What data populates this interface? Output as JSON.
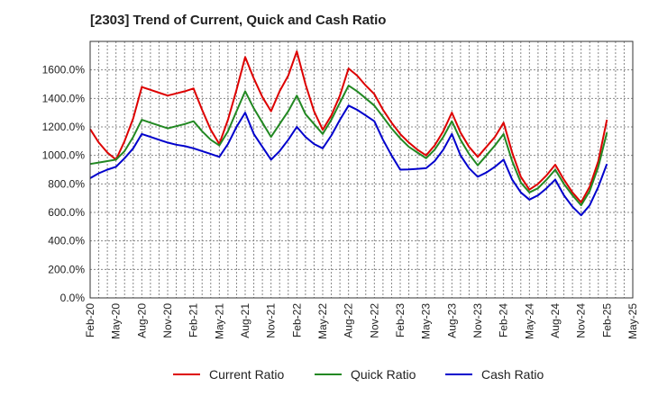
{
  "chart_data": {
    "type": "line",
    "title": "[2303]  Trend of Current, Quick and Cash Ratio",
    "xlabel": "",
    "ylabel": "",
    "ylim": [
      0,
      1800
    ],
    "yticks": [
      0,
      200,
      400,
      600,
      800,
      1000,
      1200,
      1400,
      1600
    ],
    "ytick_labels": [
      "0.0%",
      "200.0%",
      "400.0%",
      "600.0%",
      "800.0%",
      "1000.0%",
      "1200.0%",
      "1400.0%",
      "1600.0%"
    ],
    "x_tick_labels": [
      "Feb-20",
      "May-20",
      "Aug-20",
      "Nov-20",
      "Feb-21",
      "May-21",
      "Aug-21",
      "Nov-21",
      "Feb-22",
      "May-22",
      "Aug-22",
      "Nov-22",
      "Feb-23",
      "May-23",
      "Aug-23",
      "Nov-23",
      "Feb-24",
      "May-24",
      "Aug-24",
      "Nov-24",
      "Feb-25",
      "May-25"
    ],
    "grid": true,
    "legend_position": "bottom",
    "series": [
      {
        "name": "Current Ratio",
        "color": "#dd0000",
        "values": [
          1185,
          1090,
          1020,
          970,
          1100,
          1260,
          1480,
          1460,
          1440,
          1420,
          1435,
          1450,
          1470,
          1320,
          1180,
          1080,
          1250,
          1460,
          1690,
          1540,
          1410,
          1310,
          1450,
          1560,
          1730,
          1500,
          1310,
          1180,
          1280,
          1420,
          1610,
          1560,
          1490,
          1430,
          1320,
          1230,
          1150,
          1090,
          1040,
          1000,
          1070,
          1170,
          1300,
          1160,
          1060,
          990,
          1060,
          1130,
          1230,
          1020,
          850,
          760,
          800,
          860,
          935,
          830,
          740,
          670,
          780,
          960,
          1250
        ]
      },
      {
        "name": "Quick Ratio",
        "color": "#228822",
        "values": [
          940,
          950,
          960,
          970,
          1030,
          1130,
          1250,
          1230,
          1210,
          1190,
          1205,
          1220,
          1240,
          1170,
          1110,
          1070,
          1170,
          1310,
          1450,
          1330,
          1230,
          1130,
          1220,
          1310,
          1420,
          1290,
          1220,
          1150,
          1250,
          1370,
          1490,
          1450,
          1400,
          1350,
          1270,
          1190,
          1120,
          1060,
          1020,
          980,
          1040,
          1130,
          1240,
          1110,
          1010,
          930,
          1000,
          1070,
          1150,
          960,
          810,
          740,
          770,
          830,
          900,
          800,
          720,
          650,
          750,
          920,
          1160
        ]
      },
      {
        "name": "Cash Ratio",
        "color": "#0000cc",
        "values": [
          840,
          875,
          900,
          920,
          980,
          1050,
          1150,
          1130,
          1110,
          1090,
          1075,
          1065,
          1050,
          1030,
          1010,
          990,
          1080,
          1200,
          1300,
          1150,
          1060,
          970,
          1030,
          1110,
          1200,
          1130,
          1080,
          1050,
          1140,
          1250,
          1350,
          1320,
          1280,
          1240,
          1110,
          1000,
          900,
          902,
          906,
          910,
          960,
          1040,
          1150,
          1000,
          910,
          850,
          880,
          920,
          970,
          830,
          740,
          690,
          720,
          770,
          830,
          720,
          640,
          580,
          650,
          780,
          940
        ]
      }
    ]
  }
}
